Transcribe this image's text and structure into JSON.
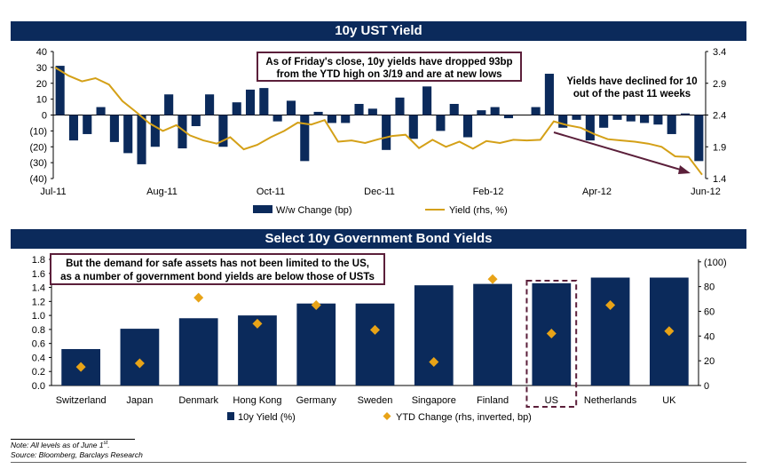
{
  "panels": {
    "top_title": "10y UST Yield",
    "bottom_title": "Select 10y Government Bond Yields"
  },
  "chart_data": [
    {
      "type": "bar",
      "title": "10y UST Yield",
      "x_tick_labels": [
        "Jul-11",
        "Aug-11",
        "Oct-11",
        "Dec-11",
        "Feb-12",
        "Apr-12",
        "Jun-12"
      ],
      "y_left": {
        "ticks": [
          "40",
          "30",
          "20",
          "10",
          "0",
          "(10)",
          "(20)",
          "(30)",
          "(40)"
        ],
        "range": [
          -40,
          40
        ]
      },
      "y_right": {
        "ticks": [
          "3.4",
          "2.9",
          "2.4",
          "1.9",
          "1.4"
        ],
        "range": [
          1.4,
          3.4
        ]
      },
      "series": [
        {
          "name": "W/w Change (bp)",
          "axis": "left",
          "color": "#0b2a5b",
          "values": [
            31,
            -16,
            -12,
            5,
            -17,
            -24,
            -31,
            -20,
            13,
            -21,
            -7,
            13,
            -20,
            8,
            16,
            17,
            -4,
            9,
            -29,
            2,
            -5,
            -5,
            7,
            4,
            -22,
            11,
            -15,
            18,
            -10,
            7,
            -14,
            3,
            5,
            -2,
            0,
            5,
            26,
            -8,
            -3,
            -16,
            -8,
            -3,
            -4,
            -5,
            -6,
            -12,
            1,
            -29
          ],
          "note": "weekly, Jul-11 to Jun-12"
        },
        {
          "name": "Yield (rhs, %)",
          "axis": "right",
          "color": "#d4a017",
          "values": [
            3.15,
            3.02,
            2.93,
            2.98,
            2.88,
            2.62,
            2.45,
            2.27,
            2.15,
            2.24,
            2.08,
            2.0,
            1.95,
            2.05,
            1.86,
            1.93,
            2.05,
            2.15,
            2.28,
            2.25,
            2.32,
            1.98,
            2.0,
            1.96,
            2.02,
            2.07,
            2.09,
            1.88,
            2.01,
            1.9,
            1.98,
            1.87,
            1.99,
            1.96,
            2.01,
            2.0,
            2.01,
            2.3,
            2.24,
            2.2,
            2.1,
            2.02,
            2.0,
            1.98,
            1.95,
            1.9,
            1.75,
            1.74,
            1.46
          ]
        }
      ],
      "legend": "bottom",
      "annotations": [
        "As of Friday's close, 10y yields have dropped 93bp",
        "from the YTD high on 3/19 and are at new lows",
        "Yields have declined for 10",
        "out of the past 11 weeks"
      ]
    },
    {
      "type": "bar",
      "title": "Select 10y Government Bond Yields",
      "categories": [
        "Switzerland",
        "Japan",
        "Denmark",
        "Hong Kong",
        "Germany",
        "Sweden",
        "Singapore",
        "Finland",
        "US",
        "Netherlands",
        "UK"
      ],
      "y_left": {
        "ticks": [
          "1.8",
          "1.6",
          "1.4",
          "1.2",
          "1.0",
          "0.8",
          "0.6",
          "0.4",
          "0.2",
          "0.0"
        ],
        "range": [
          0,
          1.8
        ]
      },
      "y_right": {
        "ticks": [
          "(100)",
          "80",
          "60",
          "40",
          "20",
          "0"
        ],
        "range": [
          0,
          100
        ],
        "inverted": true
      },
      "series": [
        {
          "name": "10y Yield (%)",
          "axis": "left",
          "color": "#0b2a5b",
          "values": [
            0.52,
            0.81,
            0.96,
            1.0,
            1.17,
            1.17,
            1.43,
            1.45,
            1.46,
            1.54,
            1.54
          ]
        },
        {
          "name": "YTD Change (rhs, inverted, bp)",
          "axis": "right",
          "color": "#e8a317",
          "values": [
            15,
            18,
            71,
            50,
            65,
            45,
            19,
            86,
            42,
            65,
            44
          ]
        }
      ],
      "highlight": "US",
      "legend": "bottom",
      "annotations": [
        "But the demand for safe assets has not been limited to the US,",
        "as a number of government bond yields are below those of USTs"
      ]
    }
  ],
  "footer": {
    "note_prefix": "Note: All levels as of June 1",
    "note_sup": "st",
    "note_suffix": ".",
    "source": "Source: Bloomberg, Barclays Research"
  }
}
